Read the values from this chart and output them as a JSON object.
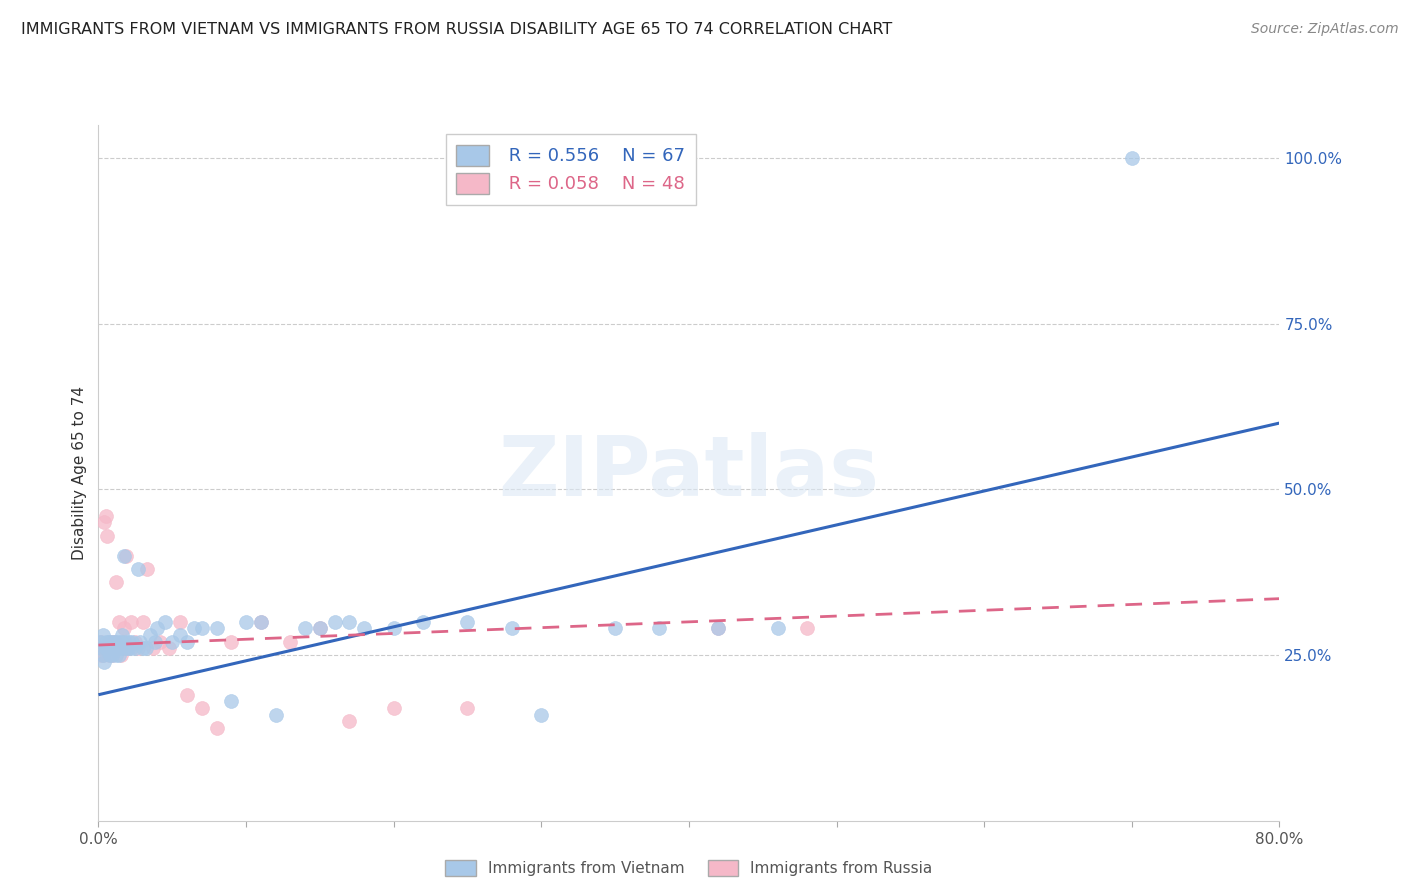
{
  "title": "IMMIGRANTS FROM VIETNAM VS IMMIGRANTS FROM RUSSIA DISABILITY AGE 65 TO 74 CORRELATION CHART",
  "source": "Source: ZipAtlas.com",
  "ylabel": "Disability Age 65 to 74",
  "xlim": [
    0.0,
    0.8
  ],
  "ylim": [
    0.0,
    1.05
  ],
  "xtick_positions": [
    0.0,
    0.1,
    0.2,
    0.3,
    0.4,
    0.5,
    0.6,
    0.7,
    0.8
  ],
  "xticklabels": [
    "0.0%",
    "",
    "",
    "",
    "",
    "",
    "",
    "",
    "80.0%"
  ],
  "ytick_positions": [
    0.25,
    0.5,
    0.75,
    1.0
  ],
  "yticklabels_right": [
    "25.0%",
    "50.0%",
    "75.0%",
    "100.0%"
  ],
  "vietnam_color": "#a8c8e8",
  "russia_color": "#f5b8c8",
  "vietnam_line_color": "#3366bb",
  "russia_line_color": "#dd6688",
  "legend_vietnam_r": "R = 0.556",
  "legend_vietnam_n": "N = 67",
  "legend_russia_r": "R = 0.058",
  "legend_russia_n": "N = 48",
  "watermark": "ZIPatlas",
  "vietnam_x": [
    0.001,
    0.002,
    0.003,
    0.003,
    0.004,
    0.005,
    0.005,
    0.006,
    0.007,
    0.007,
    0.008,
    0.008,
    0.009,
    0.009,
    0.01,
    0.01,
    0.011,
    0.011,
    0.012,
    0.012,
    0.013,
    0.013,
    0.014,
    0.015,
    0.015,
    0.016,
    0.017,
    0.018,
    0.019,
    0.02,
    0.021,
    0.022,
    0.023,
    0.025,
    0.027,
    0.028,
    0.03,
    0.032,
    0.035,
    0.038,
    0.04,
    0.045,
    0.05,
    0.055,
    0.06,
    0.065,
    0.07,
    0.08,
    0.09,
    0.1,
    0.11,
    0.12,
    0.14,
    0.15,
    0.16,
    0.17,
    0.18,
    0.2,
    0.22,
    0.25,
    0.28,
    0.3,
    0.35,
    0.38,
    0.42,
    0.46,
    0.7
  ],
  "vietnam_y": [
    0.27,
    0.26,
    0.25,
    0.28,
    0.24,
    0.26,
    0.27,
    0.26,
    0.27,
    0.26,
    0.25,
    0.27,
    0.26,
    0.25,
    0.27,
    0.26,
    0.26,
    0.27,
    0.25,
    0.26,
    0.27,
    0.26,
    0.25,
    0.27,
    0.26,
    0.28,
    0.4,
    0.27,
    0.26,
    0.26,
    0.27,
    0.26,
    0.27,
    0.26,
    0.38,
    0.27,
    0.26,
    0.26,
    0.28,
    0.27,
    0.29,
    0.3,
    0.27,
    0.28,
    0.27,
    0.29,
    0.29,
    0.29,
    0.18,
    0.3,
    0.3,
    0.16,
    0.29,
    0.29,
    0.3,
    0.3,
    0.29,
    0.29,
    0.3,
    0.3,
    0.29,
    0.16,
    0.29,
    0.29,
    0.29,
    0.29,
    1.0
  ],
  "russia_x": [
    0.001,
    0.002,
    0.002,
    0.003,
    0.003,
    0.004,
    0.005,
    0.005,
    0.006,
    0.006,
    0.007,
    0.007,
    0.008,
    0.008,
    0.009,
    0.01,
    0.01,
    0.011,
    0.012,
    0.013,
    0.014,
    0.015,
    0.016,
    0.017,
    0.018,
    0.019,
    0.02,
    0.022,
    0.025,
    0.027,
    0.03,
    0.033,
    0.037,
    0.042,
    0.048,
    0.055,
    0.06,
    0.07,
    0.08,
    0.09,
    0.11,
    0.13,
    0.15,
    0.17,
    0.2,
    0.25,
    0.42,
    0.48
  ],
  "russia_y": [
    0.26,
    0.25,
    0.27,
    0.26,
    0.25,
    0.45,
    0.26,
    0.46,
    0.26,
    0.43,
    0.25,
    0.26,
    0.27,
    0.26,
    0.25,
    0.26,
    0.27,
    0.27,
    0.36,
    0.26,
    0.3,
    0.25,
    0.27,
    0.29,
    0.26,
    0.4,
    0.26,
    0.3,
    0.27,
    0.26,
    0.3,
    0.38,
    0.26,
    0.27,
    0.26,
    0.3,
    0.19,
    0.17,
    0.14,
    0.27,
    0.3,
    0.27,
    0.29,
    0.15,
    0.17,
    0.17,
    0.29,
    0.29
  ],
  "vn_line_x0": 0.0,
  "vn_line_y0": 0.19,
  "vn_line_x1": 0.8,
  "vn_line_y1": 0.6,
  "ru_line_x0": 0.0,
  "ru_line_y0": 0.265,
  "ru_line_x1": 0.8,
  "ru_line_y1": 0.335
}
